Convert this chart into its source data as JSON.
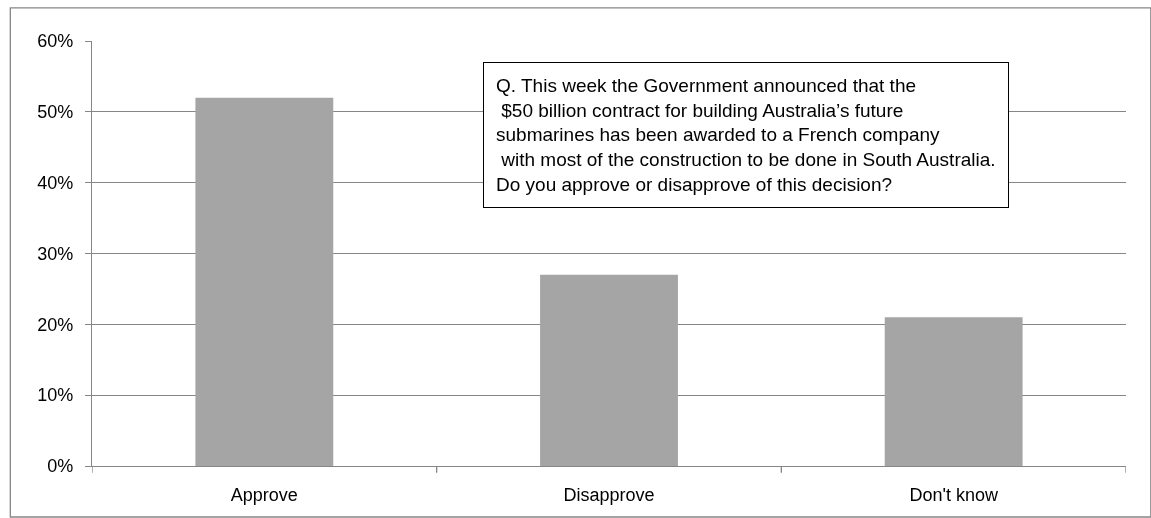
{
  "chart_data": {
    "type": "bar",
    "categories": [
      "Approve",
      "Disapprove",
      "Don't know"
    ],
    "values": [
      52,
      27,
      21
    ],
    "color": "#a5a5a5",
    "ylim": [
      0,
      60
    ],
    "yticks": [
      {
        "value": 0,
        "label": "0%"
      },
      {
        "value": 10,
        "label": "10%"
      },
      {
        "value": 20,
        "label": "20%"
      },
      {
        "value": 30,
        "label": "30%"
      },
      {
        "value": 40,
        "label": "40%"
      },
      {
        "value": 50,
        "label": "50%"
      },
      {
        "value": 60,
        "label": "60%"
      }
    ],
    "grid": "y",
    "annotations": [
      "Q. This week the Government announced that the\n $50 billion contract for building Australia’s future\nsubmarines has been awarded to a French company\n with most of the construction to be done in South Australia.\nDo you approve or disapprove of this decision?"
    ]
  }
}
